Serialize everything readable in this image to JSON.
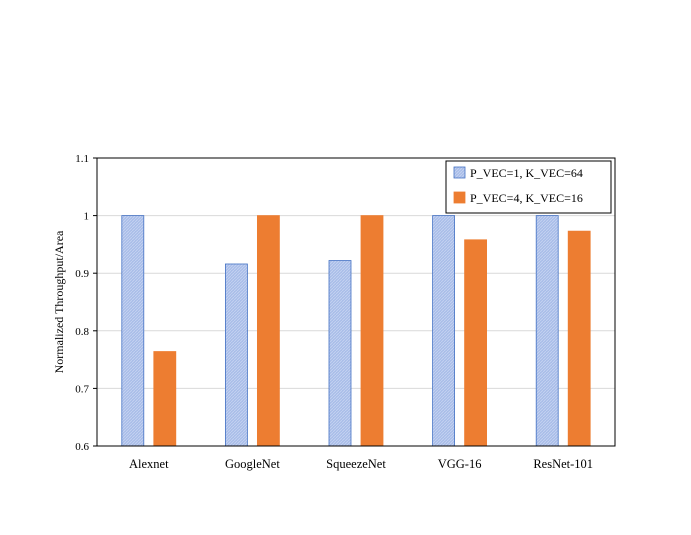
{
  "chart_data": {
    "type": "bar",
    "title": "",
    "xlabel": "",
    "ylabel": "Normalized Throughput/Area",
    "ylim": [
      0.6,
      1.1
    ],
    "yticks": [
      "0.6",
      "0.7",
      "0.8",
      "0.9",
      "1",
      "1.1"
    ],
    "grid": true,
    "legend_position": "top-right",
    "categories": [
      "Alexnet",
      "GoogleNet",
      "SqueezeNet",
      "VGG-16",
      "ResNet-101"
    ],
    "series": [
      {
        "name": "P_VEC=1, K_VEC=64",
        "color": "#a9bde8",
        "values": [
          1.0,
          0.916,
          0.922,
          1.0,
          1.0
        ]
      },
      {
        "name": "P_VEC=4, K_VEC=16",
        "color": "#ed7d31",
        "values": [
          0.764,
          1.0,
          1.0,
          0.958,
          0.973
        ]
      }
    ]
  }
}
